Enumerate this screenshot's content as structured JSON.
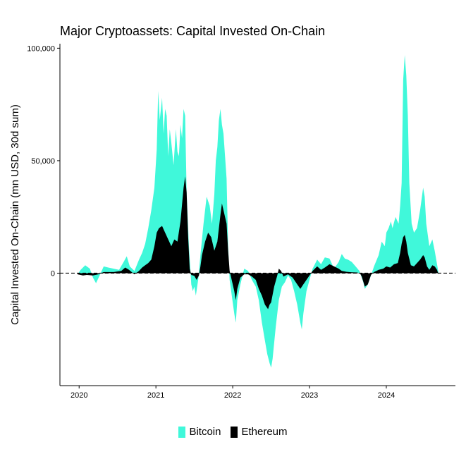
{
  "chart_data": {
    "type": "area",
    "title": "Major Cryptoassets: Capital Invested On-Chain",
    "xlabel": "",
    "ylabel": "Capital Invested On-Chain (mn USD, 30d sum)",
    "xlim": [
      2019.75,
      2024.9
    ],
    "ylim": [
      -50000,
      102000
    ],
    "yticks": [
      0,
      50000,
      100000
    ],
    "ytick_labels": [
      "0",
      "50,000",
      "100,000"
    ],
    "xticks": [
      2020,
      2021,
      2022,
      2023,
      2024
    ],
    "xtick_labels": [
      "2020",
      "2021",
      "2022",
      "2023",
      "2024"
    ],
    "zero_line": "dashed",
    "grid": false,
    "legend_position": "bottom",
    "colors": {
      "Bitcoin": "#40F8DA",
      "Ethereum": "#000000"
    },
    "series": [
      {
        "name": "Bitcoin",
        "points": [
          [
            2019.98,
            -500
          ],
          [
            2020.02,
            1500
          ],
          [
            2020.08,
            3500
          ],
          [
            2020.14,
            2000
          ],
          [
            2020.18,
            -2000
          ],
          [
            2020.22,
            -4500
          ],
          [
            2020.26,
            -1500
          ],
          [
            2020.32,
            3000
          ],
          [
            2020.38,
            2500
          ],
          [
            2020.45,
            2000
          ],
          [
            2020.52,
            1500
          ],
          [
            2020.58,
            5000
          ],
          [
            2020.62,
            7500
          ],
          [
            2020.66,
            3000
          ],
          [
            2020.72,
            1000
          ],
          [
            2020.78,
            6000
          ],
          [
            2020.82,
            9000
          ],
          [
            2020.86,
            13000
          ],
          [
            2020.9,
            20000
          ],
          [
            2020.94,
            28000
          ],
          [
            2020.98,
            38000
          ],
          [
            2021.01,
            55000
          ],
          [
            2021.03,
            81000
          ],
          [
            2021.05,
            68000
          ],
          [
            2021.08,
            78000
          ],
          [
            2021.1,
            62000
          ],
          [
            2021.12,
            73000
          ],
          [
            2021.14,
            70000
          ],
          [
            2021.16,
            52000
          ],
          [
            2021.18,
            64000
          ],
          [
            2021.2,
            58000
          ],
          [
            2021.23,
            48000
          ],
          [
            2021.26,
            64000
          ],
          [
            2021.28,
            54000
          ],
          [
            2021.3,
            52000
          ],
          [
            2021.32,
            66000
          ],
          [
            2021.34,
            60000
          ],
          [
            2021.36,
            73000
          ],
          [
            2021.38,
            70000
          ],
          [
            2021.4,
            36000
          ],
          [
            2021.43,
            12000
          ],
          [
            2021.46,
            -5000
          ],
          [
            2021.48,
            -8000
          ],
          [
            2021.5,
            -6000
          ],
          [
            2021.52,
            -10000
          ],
          [
            2021.55,
            -3000
          ],
          [
            2021.58,
            8000
          ],
          [
            2021.62,
            22000
          ],
          [
            2021.66,
            34000
          ],
          [
            2021.7,
            30000
          ],
          [
            2021.73,
            22000
          ],
          [
            2021.76,
            35000
          ],
          [
            2021.78,
            50000
          ],
          [
            2021.8,
            56000
          ],
          [
            2021.82,
            68000
          ],
          [
            2021.84,
            73000
          ],
          [
            2021.86,
            66000
          ],
          [
            2021.88,
            62000
          ],
          [
            2021.9,
            52000
          ],
          [
            2021.92,
            42000
          ],
          [
            2021.94,
            12000
          ],
          [
            2021.96,
            -3000
          ],
          [
            2021.98,
            -8000
          ],
          [
            2022.02,
            -18000
          ],
          [
            2022.04,
            -22000
          ],
          [
            2022.06,
            -12000
          ],
          [
            2022.1,
            -5000
          ],
          [
            2022.15,
            2000
          ],
          [
            2022.2,
            1000
          ],
          [
            2022.25,
            -3000
          ],
          [
            2022.3,
            -6000
          ],
          [
            2022.34,
            -12000
          ],
          [
            2022.38,
            -22000
          ],
          [
            2022.42,
            -30000
          ],
          [
            2022.45,
            -36000
          ],
          [
            2022.48,
            -40000
          ],
          [
            2022.5,
            -42000
          ],
          [
            2022.52,
            -38000
          ],
          [
            2022.56,
            -24000
          ],
          [
            2022.6,
            -12000
          ],
          [
            2022.64,
            -6000
          ],
          [
            2022.68,
            -4000
          ],
          [
            2022.72,
            -1000
          ],
          [
            2022.76,
            -3000
          ],
          [
            2022.8,
            -8000
          ],
          [
            2022.84,
            -14000
          ],
          [
            2022.88,
            -22000
          ],
          [
            2022.9,
            -25000
          ],
          [
            2022.92,
            -18000
          ],
          [
            2022.96,
            -8000
          ],
          [
            2023.0,
            -3000
          ],
          [
            2023.04,
            2000
          ],
          [
            2023.1,
            6000
          ],
          [
            2023.15,
            4000
          ],
          [
            2023.2,
            7000
          ],
          [
            2023.26,
            6500
          ],
          [
            2023.32,
            2000
          ],
          [
            2023.38,
            5000
          ],
          [
            2023.42,
            8500
          ],
          [
            2023.46,
            6500
          ],
          [
            2023.5,
            6000
          ],
          [
            2023.55,
            5000
          ],
          [
            2023.6,
            3000
          ],
          [
            2023.65,
            1000
          ],
          [
            2023.7,
            -4000
          ],
          [
            2023.72,
            -7000
          ],
          [
            2023.76,
            -5000
          ],
          [
            2023.8,
            -1000
          ],
          [
            2023.84,
            3000
          ],
          [
            2023.9,
            8000
          ],
          [
            2023.94,
            14000
          ],
          [
            2023.98,
            12000
          ],
          [
            2024.0,
            18000
          ],
          [
            2024.03,
            20000
          ],
          [
            2024.06,
            23000
          ],
          [
            2024.08,
            20000
          ],
          [
            2024.12,
            25000
          ],
          [
            2024.16,
            22000
          ],
          [
            2024.18,
            30000
          ],
          [
            2024.2,
            40000
          ],
          [
            2024.22,
            86000
          ],
          [
            2024.24,
            97000
          ],
          [
            2024.26,
            88000
          ],
          [
            2024.28,
            70000
          ],
          [
            2024.3,
            40000
          ],
          [
            2024.33,
            22000
          ],
          [
            2024.36,
            18000
          ],
          [
            2024.4,
            20000
          ],
          [
            2024.44,
            28000
          ],
          [
            2024.48,
            38000
          ],
          [
            2024.5,
            34000
          ],
          [
            2024.52,
            22000
          ],
          [
            2024.56,
            12000
          ],
          [
            2024.6,
            15000
          ],
          [
            2024.63,
            10000
          ],
          [
            2024.66,
            4000
          ],
          [
            2024.68,
            0
          ]
        ]
      },
      {
        "name": "Ethereum",
        "points": [
          [
            2019.98,
            -500
          ],
          [
            2020.05,
            -1000
          ],
          [
            2020.1,
            -800
          ],
          [
            2020.18,
            -1000
          ],
          [
            2020.25,
            -500
          ],
          [
            2020.32,
            500
          ],
          [
            2020.45,
            500
          ],
          [
            2020.55,
            1000
          ],
          [
            2020.6,
            2500
          ],
          [
            2020.65,
            1500
          ],
          [
            2020.72,
            -500
          ],
          [
            2020.78,
            1000
          ],
          [
            2020.82,
            2500
          ],
          [
            2020.86,
            3500
          ],
          [
            2020.9,
            4500
          ],
          [
            2020.94,
            6000
          ],
          [
            2020.98,
            12000
          ],
          [
            2021.01,
            18000
          ],
          [
            2021.04,
            20000
          ],
          [
            2021.08,
            21000
          ],
          [
            2021.12,
            18000
          ],
          [
            2021.16,
            15000
          ],
          [
            2021.2,
            12000
          ],
          [
            2021.24,
            15000
          ],
          [
            2021.28,
            14000
          ],
          [
            2021.32,
            23000
          ],
          [
            2021.36,
            38000
          ],
          [
            2021.38,
            43000
          ],
          [
            2021.4,
            36000
          ],
          [
            2021.42,
            16000
          ],
          [
            2021.44,
            2000
          ],
          [
            2021.46,
            -800
          ],
          [
            2021.5,
            -1200
          ],
          [
            2021.53,
            -3000
          ],
          [
            2021.56,
            -1000
          ],
          [
            2021.58,
            3000
          ],
          [
            2021.6,
            8000
          ],
          [
            2021.64,
            14000
          ],
          [
            2021.68,
            18000
          ],
          [
            2021.72,
            16000
          ],
          [
            2021.76,
            10000
          ],
          [
            2021.8,
            14000
          ],
          [
            2021.84,
            26000
          ],
          [
            2021.86,
            31000
          ],
          [
            2021.88,
            28000
          ],
          [
            2021.92,
            22000
          ],
          [
            2021.94,
            10000
          ],
          [
            2021.96,
            1000
          ],
          [
            2021.98,
            -2000
          ],
          [
            2022.02,
            -8000
          ],
          [
            2022.04,
            -12000
          ],
          [
            2022.06,
            -7000
          ],
          [
            2022.1,
            -2000
          ],
          [
            2022.15,
            -500
          ],
          [
            2022.2,
            -500
          ],
          [
            2022.25,
            -1500
          ],
          [
            2022.3,
            -3000
          ],
          [
            2022.34,
            -7000
          ],
          [
            2022.38,
            -10000
          ],
          [
            2022.42,
            -14000
          ],
          [
            2022.46,
            -16000
          ],
          [
            2022.48,
            -14000
          ],
          [
            2022.5,
            -13000
          ],
          [
            2022.54,
            -6000
          ],
          [
            2022.58,
            -1000
          ],
          [
            2022.6,
            2000
          ],
          [
            2022.63,
            1000
          ],
          [
            2022.66,
            -1500
          ],
          [
            2022.72,
            -500
          ],
          [
            2022.78,
            -2000
          ],
          [
            2022.84,
            -5000
          ],
          [
            2022.88,
            -7000
          ],
          [
            2022.92,
            -5000
          ],
          [
            2022.98,
            -2000
          ],
          [
            2023.04,
            1000
          ],
          [
            2023.1,
            3000
          ],
          [
            2023.15,
            1500
          ],
          [
            2023.2,
            2500
          ],
          [
            2023.26,
            4000
          ],
          [
            2023.32,
            3000
          ],
          [
            2023.38,
            2000
          ],
          [
            2023.42,
            1000
          ],
          [
            2023.48,
            600
          ],
          [
            2023.55,
            400
          ],
          [
            2023.62,
            300
          ],
          [
            2023.66,
            -200
          ],
          [
            2023.68,
            -1500
          ],
          [
            2023.72,
            -6000
          ],
          [
            2023.76,
            -5000
          ],
          [
            2023.8,
            -800
          ],
          [
            2023.84,
            500
          ],
          [
            2023.9,
            1500
          ],
          [
            2023.96,
            2000
          ],
          [
            2024.0,
            3000
          ],
          [
            2024.05,
            2500
          ],
          [
            2024.1,
            4000
          ],
          [
            2024.15,
            4500
          ],
          [
            2024.18,
            9000
          ],
          [
            2024.2,
            13000
          ],
          [
            2024.22,
            16000
          ],
          [
            2024.24,
            17000
          ],
          [
            2024.26,
            14000
          ],
          [
            2024.28,
            9000
          ],
          [
            2024.32,
            3500
          ],
          [
            2024.36,
            3000
          ],
          [
            2024.4,
            4500
          ],
          [
            2024.44,
            6000
          ],
          [
            2024.48,
            8000
          ],
          [
            2024.5,
            7000
          ],
          [
            2024.53,
            3000
          ],
          [
            2024.56,
            1500
          ],
          [
            2024.6,
            3500
          ],
          [
            2024.63,
            3000
          ],
          [
            2024.66,
            1500
          ],
          [
            2024.68,
            -500
          ]
        ]
      }
    ]
  }
}
